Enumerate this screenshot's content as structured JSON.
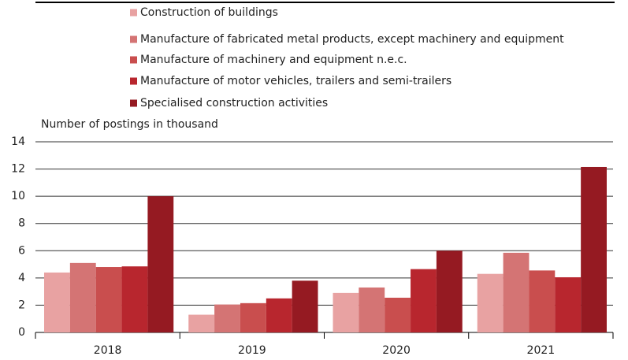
{
  "chart_data": {
    "type": "bar",
    "y_label": "Number of postings in thousand",
    "categories": [
      "2018",
      "2019",
      "2020",
      "2021"
    ],
    "series": [
      {
        "name": "Construction of buildings",
        "color": "#e8a2a2",
        "values": [
          4.4,
          1.3,
          2.9,
          4.3
        ]
      },
      {
        "name": "Manufacture of fabricated metal products, except machinery and equipment",
        "color": "#d47474",
        "values": [
          5.1,
          2.05,
          3.3,
          5.85
        ]
      },
      {
        "name": "Manufacture of machinery and equipment n.e.c.",
        "color": "#c94e4e",
        "values": [
          4.8,
          2.15,
          2.55,
          4.55
        ]
      },
      {
        "name": "Manufacture of motor vehicles, trailers and semi-trailers",
        "color": "#b8262e",
        "values": [
          4.85,
          2.5,
          4.65,
          4.05
        ]
      },
      {
        "name": "Specialised construction activities",
        "color": "#951a22",
        "values": [
          10.0,
          3.8,
          6.0,
          12.15
        ]
      }
    ],
    "ylim": [
      0,
      14
    ],
    "yticks": [
      0,
      2,
      4,
      6,
      8,
      10,
      12,
      14
    ],
    "grid": true,
    "legend": "top"
  }
}
